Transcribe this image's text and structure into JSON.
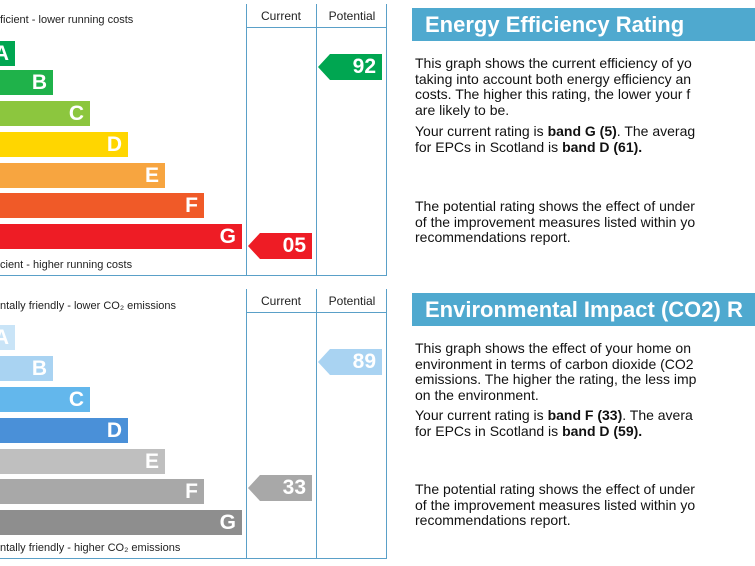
{
  "energy": {
    "top_caption": "ficient - lower running costs",
    "bottom_caption": "cient - higher running costs",
    "col_current": "Current",
    "col_potential": "Potential",
    "bands": [
      "A",
      "B",
      "C",
      "D",
      "E",
      "F",
      "G"
    ],
    "band_colors": [
      "#00a651",
      "#1fb24a",
      "#8cc63e",
      "#ffd600",
      "#f7a540",
      "#f05a28",
      "#ee1c25"
    ],
    "current": {
      "value": "05",
      "band": "G",
      "color": "#ee1c25"
    },
    "potential": {
      "value": "92",
      "band": "A",
      "color": "#00a651"
    }
  },
  "environment": {
    "top_caption": "ntally friendly - lower CO₂ emissions",
    "bottom_caption": "ntally friendly - higher CO₂ emissions",
    "col_current": "Current",
    "col_potential": "Potential",
    "bands": [
      "A",
      "B",
      "C",
      "D",
      "E",
      "F",
      "G"
    ],
    "band_colors": [
      "#c9e4f7",
      "#a9d3f2",
      "#63b7ec",
      "#4a90d8",
      "#bfbfbf",
      "#a8a8a8",
      "#8e8e8e"
    ],
    "current": {
      "value": "33",
      "band": "F",
      "color": "#a8a8a8"
    },
    "potential": {
      "value": "89",
      "band": "B",
      "color": "#a9d3f2"
    }
  },
  "energy_panel": {
    "title": "Energy Efficiency Rating",
    "p1": [
      "This graph shows the current efficiency of yo",
      "taking into account both energy efficiency an",
      "costs. The higher this rating, the lower your f",
      "are likely to be."
    ],
    "p2_a": "Your current rating is ",
    "p2_b": "band G (5)",
    "p2_c": ". The averag",
    "p2_d": "for EPCs in Scotland is ",
    "p2_e": "band D (61)",
    "p2_f": ".",
    "p3": [
      "The potential rating shows the effect of under",
      "of the improvement measures listed within yo",
      "recommendations report."
    ]
  },
  "env_panel": {
    "title": "Environmental Impact (CO2) R",
    "p1_a": "This graph shows the effect of your home on",
    "p1_b": "environment in terms of carbon dioxide (CO2",
    "p1_c": "emissions. The higher the rating, the less imp",
    "p1_d": "on the environment.",
    "p2_a": "Your current rating is ",
    "p2_b": "band F (33)",
    "p2_c": ". The avera",
    "p2_d": "for EPCs in Scotland is ",
    "p2_e": "band D (59)",
    "p2_f": ".",
    "p3": [
      "The potential rating shows the effect of under",
      "of the improvement measures listed within yo",
      "recommendations report."
    ]
  }
}
